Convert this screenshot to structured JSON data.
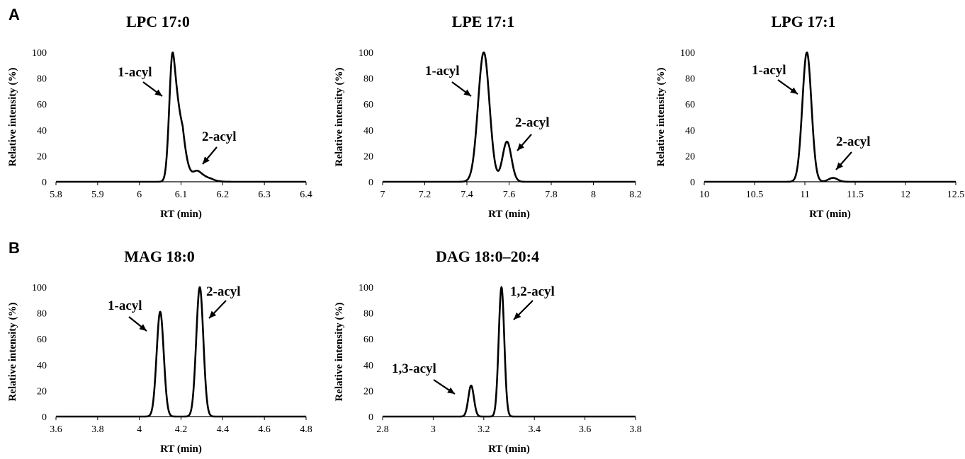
{
  "panel_labels": [
    "A",
    "B"
  ],
  "chart_data": [
    {
      "type": "line",
      "title": "LPC 17:0",
      "xlabel": "RT (min)",
      "ylabel": "Relative intensity (%)",
      "xlim": [
        5.8,
        6.4
      ],
      "ylim": [
        0,
        100
      ],
      "xticks": [
        "5.8",
        "5.9",
        "6",
        "6.1",
        "6.2",
        "6.3",
        "6.4"
      ],
      "yticks": [
        "0",
        "20",
        "40",
        "60",
        "80",
        "100"
      ],
      "peaks": [
        {
          "rt": 6.08,
          "height": 100,
          "width": 0.008,
          "tail": 0.01
        },
        {
          "rt": 6.14,
          "height": 8,
          "width": 0.011,
          "tail": 0.01
        }
      ],
      "annotations": [
        {
          "text": "1-acyl",
          "peak": 0
        },
        {
          "text": "2-acyl",
          "peak": 1
        }
      ],
      "grid": false
    },
    {
      "type": "line",
      "title": "LPE 17:1",
      "xlabel": "RT (min)",
      "ylabel": "Relative intensity (%)",
      "xlim": [
        7,
        8.2
      ],
      "ylim": [
        0,
        100
      ],
      "xticks": [
        "7",
        "7.2",
        "7.4",
        "7.6",
        "7.8",
        "8",
        "8.2"
      ],
      "yticks": [
        "0",
        "20",
        "40",
        "60",
        "80",
        "100"
      ],
      "peaks": [
        {
          "rt": 7.48,
          "height": 100,
          "width": 0.027,
          "tail": 0.0
        },
        {
          "rt": 7.59,
          "height": 31,
          "width": 0.021,
          "tail": 0.0
        }
      ],
      "annotations": [
        {
          "text": "1-acyl",
          "peak": 0
        },
        {
          "text": "2-acyl",
          "peak": 1
        }
      ],
      "grid": false
    },
    {
      "type": "line",
      "title": "LPG 17:1",
      "xlabel": "RT (min)",
      "ylabel": "Relative intensity (%)",
      "xlim": [
        10,
        12.5
      ],
      "ylim": [
        0,
        100
      ],
      "xticks": [
        "10",
        "10.5",
        "11",
        "11.5",
        "12",
        "12.5"
      ],
      "yticks": [
        "0",
        "20",
        "40",
        "60",
        "80",
        "100"
      ],
      "peaks": [
        {
          "rt": 11.02,
          "height": 100,
          "width": 0.045,
          "tail": 0.0
        },
        {
          "rt": 11.28,
          "height": 3,
          "width": 0.045,
          "tail": 0.0
        }
      ],
      "annotations": [
        {
          "text": "1-acyl",
          "peak": 0
        },
        {
          "text": "2-acyl",
          "peak": 1
        }
      ],
      "grid": false
    },
    {
      "type": "line",
      "title": "MAG 18:0",
      "xlabel": "RT (min)",
      "ylabel": "Relative intensity (%)",
      "xlim": [
        3.6,
        4.8
      ],
      "ylim": [
        0,
        100
      ],
      "xticks": [
        "3.6",
        "3.8",
        "4",
        "4.2",
        "4.4",
        "4.6",
        "4.8"
      ],
      "yticks": [
        "0",
        "20",
        "40",
        "60",
        "80",
        "100"
      ],
      "peaks": [
        {
          "rt": 4.1,
          "height": 81,
          "width": 0.017,
          "tail": 0.0
        },
        {
          "rt": 4.29,
          "height": 100,
          "width": 0.017,
          "tail": 0.0
        }
      ],
      "annotations": [
        {
          "text": "1-acyl",
          "peak": 0
        },
        {
          "text": "2-acyl",
          "peak": 1
        }
      ],
      "grid": false
    },
    {
      "type": "line",
      "title": "DAG 18:0–20:4",
      "xlabel": "RT (min)",
      "ylabel": "Relative intensity (%)",
      "xlim": [
        2.8,
        3.8
      ],
      "ylim": [
        0,
        100
      ],
      "xticks": [
        "2.8",
        "3",
        "3.2",
        "3.4",
        "3.6",
        "3.8"
      ],
      "yticks": [
        "0",
        "20",
        "40",
        "60",
        "80",
        "100"
      ],
      "peaks": [
        {
          "rt": 3.15,
          "height": 24,
          "width": 0.011,
          "tail": 0.0
        },
        {
          "rt": 3.27,
          "height": 100,
          "width": 0.011,
          "tail": 0.0
        }
      ],
      "annotations": [
        {
          "text": "1,3-acyl",
          "peak": 0
        },
        {
          "text": "1,2-acyl",
          "peak": 1
        }
      ],
      "grid": false
    }
  ]
}
